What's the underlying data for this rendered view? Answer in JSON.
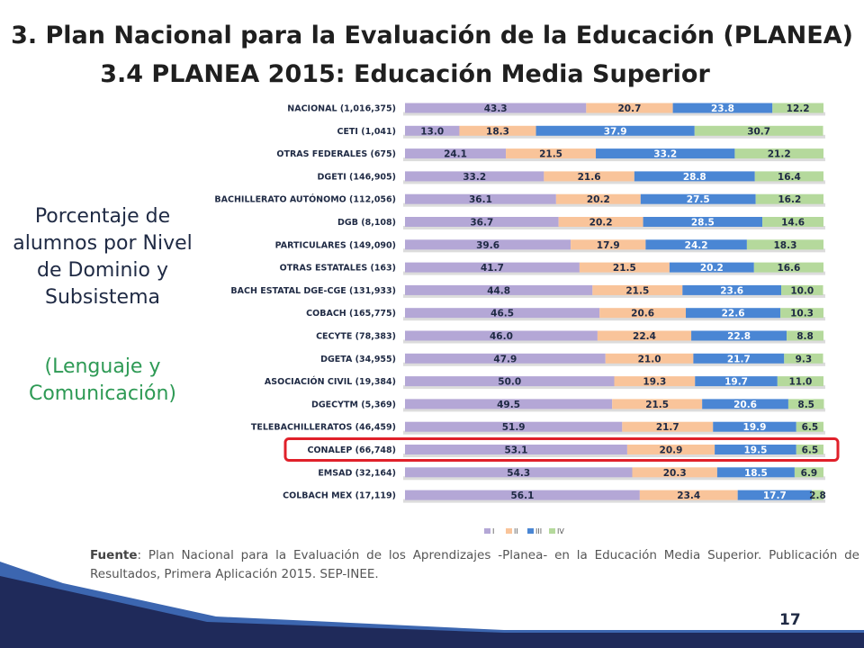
{
  "slide": {
    "title": "3. Plan Nacional para la Evaluación de la Educación (PLANEA)",
    "subtitle": "3.4 PLANEA 2015: Educación Media Superior",
    "side_text": "Porcentaje de alumnos por Nivel de Dominio y Subsistema",
    "side_subtext": "(Lenguaje y Comunicación)",
    "source_label": "Fuente",
    "source_text": ": Plan Nacional para la Evaluación de los Aprendizajes -Planea- en la Educación Media Superior. Publicación de Resultados, Primera Aplicación 2015. SEP-INEE.",
    "page_number": "17"
  },
  "colors": {
    "I": "#b4a7d6",
    "II": "#f9c49a",
    "III": "#4a86d4",
    "IV": "#b5d99c",
    "highlight": "#e0202a",
    "footer_dark": "#1f2a5a",
    "footer_light": "#3c66b0"
  },
  "chart_data": {
    "type": "bar",
    "orientation": "horizontal",
    "stacked": true,
    "highlighted_category": "CONALEP (66,748)",
    "categories": [
      "NACIONAL (1,016,375)",
      "CETI (1,041)",
      "OTRAS FEDERALES (675)",
      "DGETI (146,905)",
      "BACHILLERATO AUTÓNOMO (112,056)",
      "DGB (8,108)",
      "PARTICULARES (149,090)",
      "OTRAS ESTATALES (163)",
      "BACH ESTATAL DGE-CGE (131,933)",
      "COBACH (165,775)",
      "CECYTE (78,383)",
      "DGETA (34,955)",
      "ASOCIACIÓN CIVIL (19,384)",
      "DGECYTM (5,369)",
      "TELEBACHILLERATOS (46,459)",
      "CONALEP (66,748)",
      "EMSAD (32,164)",
      "COLBACH MEX (17,119)"
    ],
    "series": [
      {
        "name": "I",
        "values": [
          43.3,
          13.0,
          24.1,
          33.2,
          36.1,
          36.7,
          39.6,
          41.7,
          44.8,
          46.5,
          46.0,
          47.9,
          50.0,
          49.5,
          51.9,
          53.1,
          54.3,
          56.1
        ]
      },
      {
        "name": "II",
        "values": [
          20.7,
          18.3,
          21.5,
          21.6,
          20.2,
          20.2,
          17.9,
          21.5,
          21.5,
          20.6,
          22.4,
          21.0,
          19.3,
          21.5,
          21.7,
          20.9,
          20.3,
          23.4
        ]
      },
      {
        "name": "III",
        "values": [
          23.8,
          37.9,
          33.2,
          28.8,
          27.5,
          28.5,
          24.2,
          20.2,
          23.6,
          22.6,
          22.8,
          21.7,
          19.7,
          20.6,
          19.9,
          19.5,
          18.5,
          17.7
        ]
      },
      {
        "name": "IV",
        "values": [
          12.2,
          30.7,
          21.2,
          16.4,
          16.2,
          14.6,
          18.3,
          16.6,
          10.0,
          10.3,
          8.8,
          9.3,
          11.0,
          8.5,
          6.5,
          6.5,
          6.9,
          2.8
        ]
      }
    ],
    "legend": [
      "I",
      "II",
      "III",
      "IV"
    ],
    "legend_position": "bottom",
    "xlim": [
      0,
      100
    ]
  }
}
